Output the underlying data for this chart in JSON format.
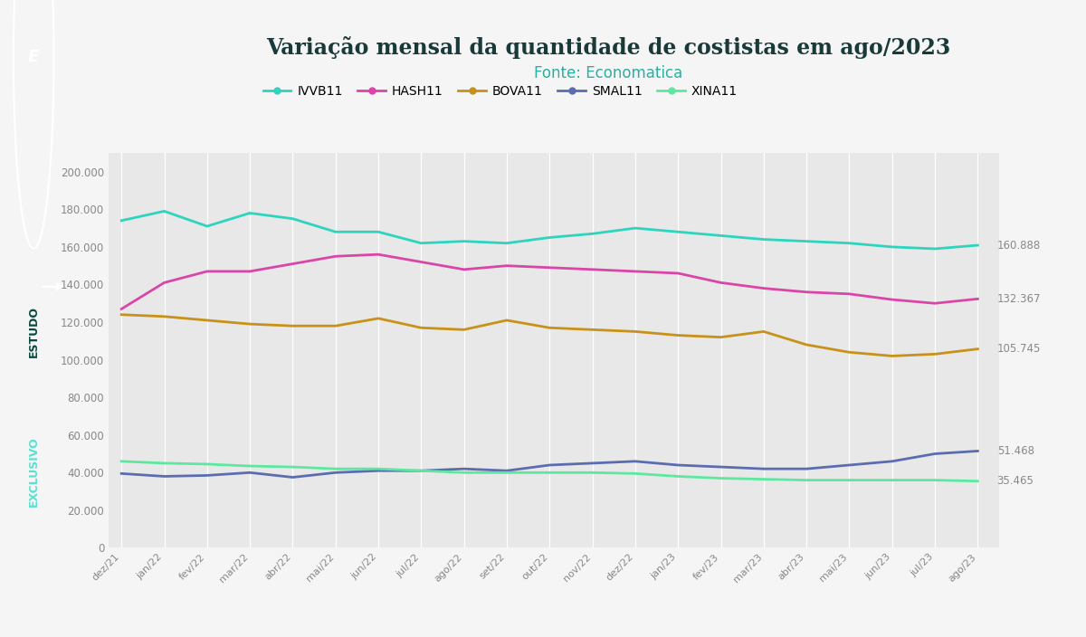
{
  "title": "Variação mensal da quantidade de costistas em ago/2023",
  "subtitle": "Fonte: Economatica",
  "title_color": "#1a3a3a",
  "subtitle_color": "#2ab0a0",
  "background_color": "#f5f5f5",
  "plot_bg_color": "#e8e8e8",
  "x_labels": [
    "dez/21",
    "jan/22",
    "fev/22",
    "mar/22",
    "abr/22",
    "mai/22",
    "jun/22",
    "jul/22",
    "ago/22",
    "set/22",
    "out/22",
    "nov/22",
    "dez/22",
    "jan/23",
    "fev/23",
    "mar/23",
    "abr/23",
    "mai/23",
    "jun/23",
    "jul/23",
    "ago/23"
  ],
  "series": [
    {
      "name": "IVVB11",
      "color": "#2dd4bf",
      "linewidth": 2.0,
      "values": [
        174000,
        179000,
        171000,
        178000,
        175000,
        168000,
        168000,
        162000,
        163000,
        162000,
        165000,
        167000,
        170000,
        168000,
        166000,
        164000,
        163000,
        162000,
        160000,
        159000,
        160888
      ]
    },
    {
      "name": "HASH11",
      "color": "#d946a8",
      "linewidth": 2.0,
      "values": [
        127000,
        141000,
        147000,
        147000,
        151000,
        155000,
        156000,
        152000,
        148000,
        150000,
        149000,
        148000,
        147000,
        146000,
        141000,
        138000,
        136000,
        135000,
        132000,
        130000,
        132367
      ]
    },
    {
      "name": "BOVA11",
      "color": "#c8921a",
      "linewidth": 2.0,
      "values": [
        124000,
        123000,
        121000,
        119000,
        118000,
        118000,
        122000,
        117000,
        116000,
        121000,
        117000,
        116000,
        115000,
        113000,
        112000,
        115000,
        108000,
        104000,
        102000,
        103000,
        105745
      ]
    },
    {
      "name": "SMAL11",
      "color": "#5b6db0",
      "linewidth": 2.0,
      "values": [
        39500,
        38000,
        38500,
        40000,
        37500,
        40000,
        41000,
        41000,
        42000,
        41000,
        44000,
        45000,
        46000,
        44000,
        43000,
        42000,
        42000,
        44000,
        46000,
        50000,
        51468
      ]
    },
    {
      "name": "XINA11",
      "color": "#5de8a0",
      "linewidth": 2.0,
      "values": [
        46000,
        45000,
        44500,
        43500,
        43000,
        42000,
        42000,
        41000,
        40000,
        40000,
        40000,
        40000,
        39500,
        38000,
        37000,
        36500,
        36000,
        36000,
        36000,
        36000,
        35465
      ]
    }
  ],
  "end_labels": [
    "160.888",
    "132.367",
    "105.745",
    "51.468",
    "35.465"
  ],
  "ylim": [
    0,
    210000
  ],
  "yticks": [
    0,
    20000,
    40000,
    60000,
    80000,
    100000,
    120000,
    140000,
    160000,
    180000,
    200000
  ],
  "ytick_labels": [
    "0",
    "20.000",
    "40.000",
    "60.000",
    "80.000",
    "100.000",
    "120.000",
    "140.000",
    "160.000",
    "180.000",
    "200.000"
  ],
  "sidebar_color": "#0d9b8a",
  "sidebar_text": "ESTUDO EXCLUSIVO",
  "sidebar_text_color": "#1a5a5a",
  "grid_color": "#ffffff",
  "tick_color": "#888888"
}
